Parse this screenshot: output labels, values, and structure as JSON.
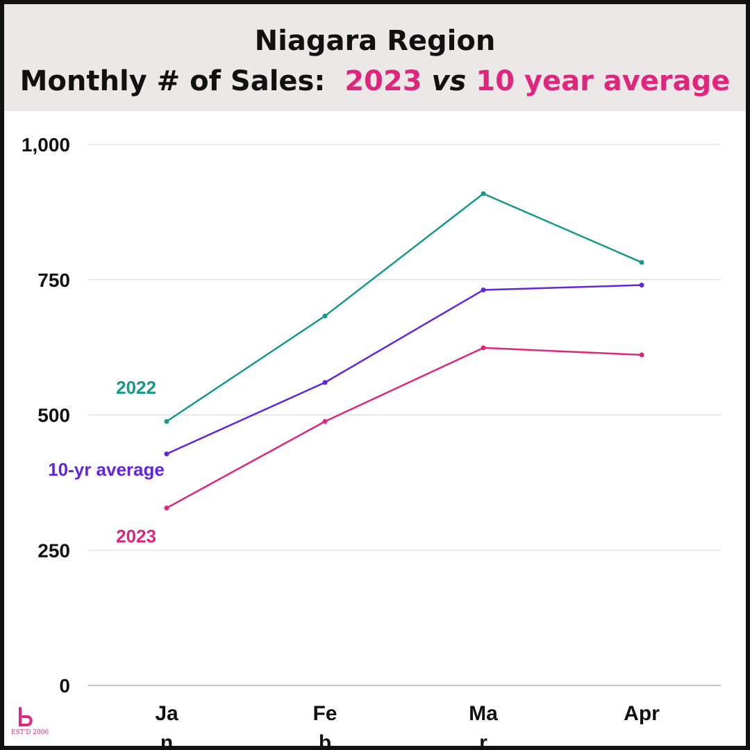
{
  "title": {
    "line1": "Niagara Region",
    "line2_prefix": "Monthly # of Sales:",
    "line2_year": "2023",
    "line2_vs": "vs",
    "line2_average": "10 year average"
  },
  "logo": {
    "est_text": "EST'D 2006"
  },
  "colors": {
    "series_2022": "#139a88",
    "series_10yr": "#6124e0",
    "series_2023": "#e0267c",
    "grid": "#d8d8d8",
    "axis": "#b0b0b0",
    "text": "#111111"
  },
  "chart_data": {
    "type": "line",
    "categories": [
      "Jan",
      "Feb",
      "Mar",
      "Apr"
    ],
    "yticks": [
      "0",
      "250",
      "500",
      "750",
      "1,000"
    ],
    "ytick_values": [
      0,
      250,
      500,
      750,
      1000
    ],
    "ylim": [
      0,
      1000
    ],
    "grid": true,
    "legend": "inline-left",
    "series": [
      {
        "name": "2022",
        "values": [
          488,
          683,
          909,
          782
        ]
      },
      {
        "name": "10-yr average",
        "values": [
          428,
          560,
          731,
          740
        ]
      },
      {
        "name": "2023",
        "values": [
          328,
          488,
          624,
          611
        ]
      }
    ]
  }
}
